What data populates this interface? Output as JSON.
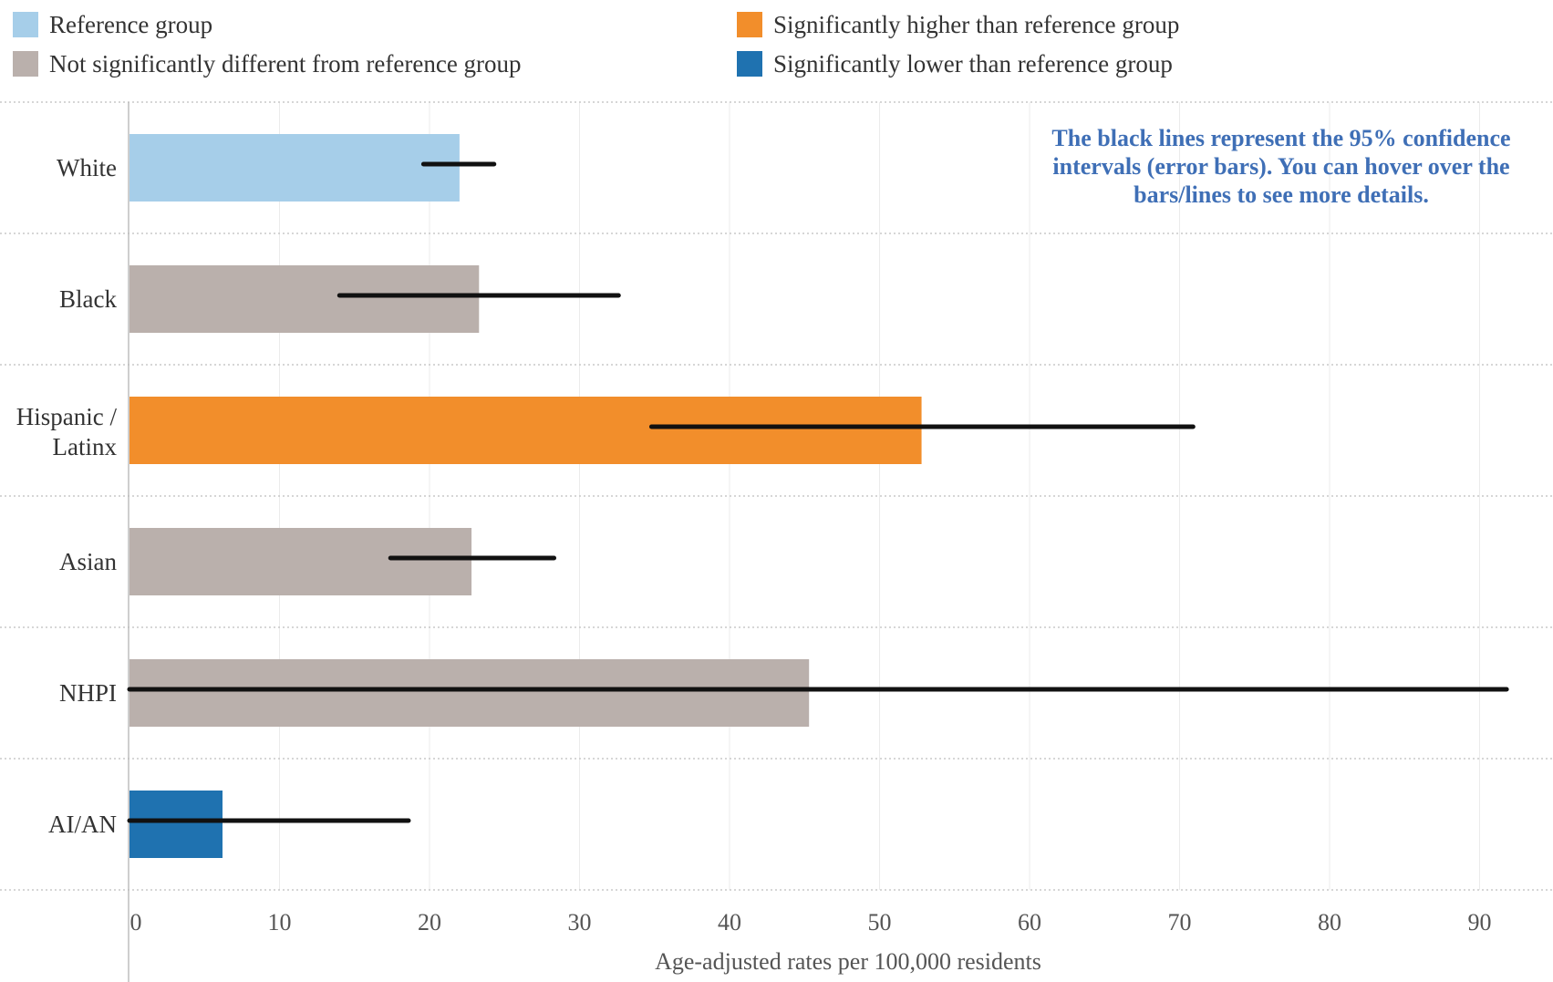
{
  "legend": [
    {
      "label": "Reference group",
      "color": "#a6cee9"
    },
    {
      "label": "Significantly higher than reference group",
      "color": "#f28e2b"
    },
    {
      "label": "Not significantly different from reference group",
      "color": "#bab0ac"
    },
    {
      "label": "Significantly lower than reference group",
      "color": "#1f72b0"
    }
  ],
  "note": "The black lines represent the 95% confidence intervals (error bars). You can hover over the bars/lines to see more details.",
  "chart_data": {
    "type": "bar",
    "orientation": "horizontal",
    "categories": [
      "White",
      "Black",
      "Hispanic / Latinx",
      "Asian",
      "NHPI",
      "AI/AN"
    ],
    "values": [
      22.0,
      23.3,
      52.8,
      22.8,
      45.3,
      6.2
    ],
    "ci_low": [
      19.6,
      14.0,
      34.8,
      17.4,
      0.0,
      0.0
    ],
    "ci_high": [
      24.3,
      32.6,
      70.9,
      28.3,
      91.8,
      18.6
    ],
    "bar_colors": [
      "#a6cee9",
      "#bab0ac",
      "#f28e2b",
      "#bab0ac",
      "#bab0ac",
      "#1f72b0"
    ],
    "error_bar_color": "#111111",
    "xlim": [
      0,
      95
    ],
    "xticks": [
      0,
      10,
      20,
      30,
      40,
      50,
      60,
      70,
      80,
      90
    ],
    "xlabel": "Age-adjusted rates per 100,000 residents",
    "ylabel": "",
    "grid": true,
    "legend_position": "top"
  }
}
